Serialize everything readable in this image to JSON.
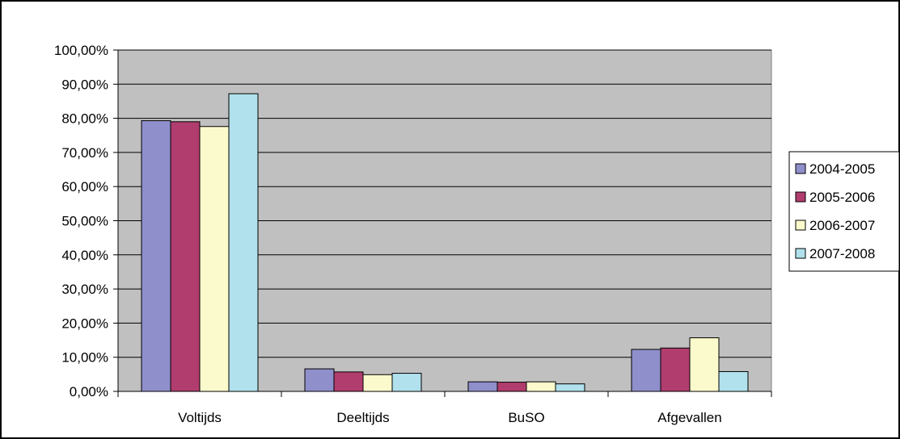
{
  "chart_data": {
    "type": "bar",
    "categories": [
      "Voltijds",
      "Deeltijds",
      "BuSO",
      "Afgevallen"
    ],
    "series": [
      {
        "name": "2004-2005",
        "color": "#8f8fcc",
        "values": [
          79.3,
          6.6,
          2.8,
          12.3
        ]
      },
      {
        "name": "2005-2006",
        "color": "#b03d6e",
        "values": [
          79.0,
          5.7,
          2.7,
          12.7
        ]
      },
      {
        "name": "2006-2007",
        "color": "#fbfacc",
        "values": [
          77.6,
          4.9,
          2.8,
          15.7
        ]
      },
      {
        "name": "2007-2008",
        "color": "#b1e1ec",
        "values": [
          87.2,
          5.3,
          2.2,
          5.8
        ]
      }
    ],
    "y_ticks": [
      "0,00%",
      "10,00%",
      "20,00%",
      "30,00%",
      "40,00%",
      "50,00%",
      "60,00%",
      "70,00%",
      "80,00%",
      "90,00%",
      "100,00%"
    ],
    "ylim": [
      0,
      100
    ],
    "y_unit": "%",
    "grid": true,
    "legend_position": "right",
    "plot_background": "#c0c0c0"
  }
}
